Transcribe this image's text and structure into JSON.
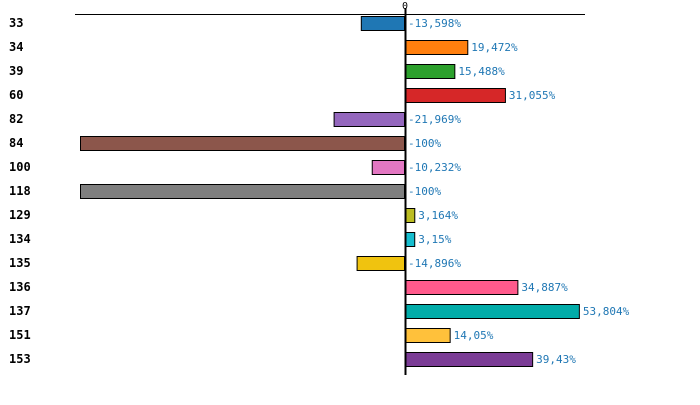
{
  "chart_data": {
    "type": "bar",
    "orientation": "horizontal",
    "title": "",
    "xlabel": "",
    "ylabel": "",
    "xlim": [
      -100,
      56
    ],
    "x_ticks": [
      "0"
    ],
    "grid": false,
    "categories": [
      "33",
      "34",
      "39",
      "60",
      "82",
      "84",
      "100",
      "118",
      "129",
      "134",
      "135",
      "136",
      "137",
      "151",
      "153"
    ],
    "highlighted_category": "100",
    "highlight_color": "#ff0000",
    "values": [
      -13.598,
      19.472,
      15.488,
      31.055,
      -21.969,
      -100,
      -10.232,
      -100,
      3.164,
      3.15,
      -14.896,
      34.887,
      53.804,
      14.05,
      39.43
    ],
    "value_labels": [
      "-13,598%",
      "19,472%",
      "15,488%",
      "31,055%",
      "-21,969%",
      "-100%",
      "-10,232%",
      "-100%",
      "3,164%",
      "3,15%",
      "-14,896%",
      "34,887%",
      "53,804%",
      "14,05%",
      "39,43%"
    ],
    "colors": [
      "#1f77b4",
      "#ff7f0e",
      "#2ca02c",
      "#d62728",
      "#9467bd",
      "#8c564b",
      "#e377c2",
      "#7f7f7f",
      "#bcbd22",
      "#17becf",
      "#f0c30f",
      "#ff5a8c",
      "#02aca9",
      "#ffc13b",
      "#7b3c96"
    ],
    "label_color": "#1f77b4"
  }
}
